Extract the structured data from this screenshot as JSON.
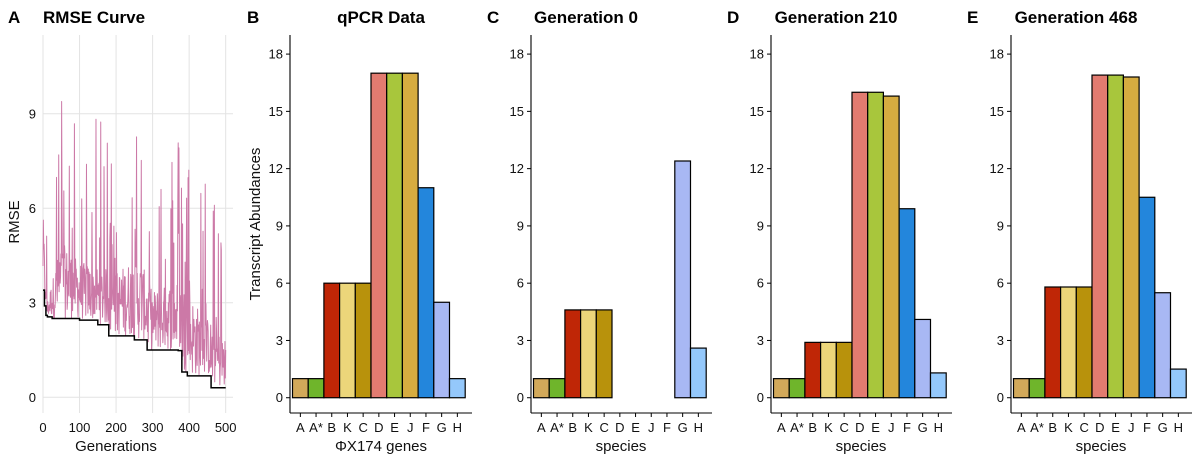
{
  "chart_data": [
    {
      "letter": "A",
      "type": "line",
      "title": "RMSE Curve",
      "xlabel": "Generations",
      "ylabel": "RMSE",
      "xlim": [
        0,
        520
      ],
      "ylim": [
        -0.5,
        11.5
      ],
      "xticks": [
        0,
        100,
        200,
        300,
        400,
        500
      ],
      "yticks": [
        0,
        3,
        6,
        9
      ],
      "grid": true,
      "series": [
        {
          "color": "#cc79a7",
          "style": "noisy",
          "values": [
            [
              0,
              6.2
            ],
            [
              10,
              3.0
            ],
            [
              50,
              5.2
            ],
            [
              100,
              4.5
            ],
            [
              200,
              4.2
            ],
            [
              260,
              4.8
            ],
            [
              300,
              3.6
            ],
            [
              380,
              4.0
            ],
            [
              430,
              3.0
            ],
            [
              500,
              2.0
            ]
          ]
        },
        {
          "color": "#000000",
          "style": "step",
          "values": [
            [
              0,
              3.4
            ],
            [
              4,
              2.9
            ],
            [
              8,
              2.6
            ],
            [
              12,
              2.55
            ],
            [
              25,
              2.5
            ],
            [
              100,
              2.45
            ],
            [
              150,
              2.3
            ],
            [
              180,
              1.95
            ],
            [
              250,
              1.82
            ],
            [
              285,
              1.5
            ],
            [
              370,
              1.48
            ],
            [
              380,
              0.8
            ],
            [
              395,
              0.68
            ],
            [
              460,
              0.3
            ],
            [
              500,
              0.3
            ]
          ]
        }
      ]
    },
    {
      "letter": "B",
      "type": "bar",
      "title": "qPCR Data",
      "xlabel": "ΦX174 genes",
      "ylabel": "Transcript Abundances",
      "ylim": [
        -0.8,
        19
      ],
      "yticks": [
        0,
        3,
        6,
        9,
        12,
        15,
        18
      ],
      "categories": [
        "A",
        "A*",
        "B",
        "K",
        "C",
        "D",
        "E",
        "J",
        "F",
        "G",
        "H"
      ],
      "values": [
        1,
        1,
        6,
        6,
        6,
        17,
        17,
        17,
        11,
        5,
        1
      ]
    },
    {
      "letter": "C",
      "type": "bar",
      "title": "Generation 0",
      "xlabel": "species",
      "ylabel": "",
      "ylim": [
        -0.8,
        19
      ],
      "yticks": [
        0,
        3,
        6,
        9,
        12,
        15,
        18
      ],
      "categories": [
        "A",
        "A*",
        "B",
        "K",
        "C",
        "D",
        "E",
        "J",
        "F",
        "G",
        "H"
      ],
      "values": [
        1,
        1,
        4.6,
        4.6,
        4.6,
        0,
        0,
        0,
        0,
        12.4,
        2.6
      ]
    },
    {
      "letter": "D",
      "type": "bar",
      "title": "Generation 210",
      "xlabel": "species",
      "ylabel": "",
      "ylim": [
        -0.8,
        19
      ],
      "yticks": [
        0,
        3,
        6,
        9,
        12,
        15,
        18
      ],
      "categories": [
        "A",
        "A*",
        "B",
        "K",
        "C",
        "D",
        "E",
        "J",
        "F",
        "G",
        "H"
      ],
      "values": [
        1,
        1,
        2.9,
        2.9,
        2.9,
        16,
        16,
        15.8,
        9.9,
        4.1,
        1.3
      ]
    },
    {
      "letter": "E",
      "type": "bar",
      "title": "Generation 468",
      "xlabel": "species",
      "ylabel": "",
      "ylim": [
        -0.8,
        19
      ],
      "yticks": [
        0,
        3,
        6,
        9,
        12,
        15,
        18
      ],
      "categories": [
        "A",
        "A*",
        "B",
        "K",
        "C",
        "D",
        "E",
        "J",
        "F",
        "G",
        "H"
      ],
      "values": [
        1,
        1,
        5.8,
        5.8,
        5.8,
        16.9,
        16.9,
        16.8,
        10.5,
        5.5,
        1.5
      ]
    }
  ],
  "bar_colors": {
    "A": "#d2a95a",
    "A*": "#6fb52b",
    "B": "#bf2606",
    "K": "#ecd67a",
    "C": "#b8920c",
    "D": "#e27b70",
    "E": "#a8c63c",
    "J": "#d6ac40",
    "F": "#2386dc",
    "G": "#a8b8f4",
    "H": "#94c8fb"
  }
}
